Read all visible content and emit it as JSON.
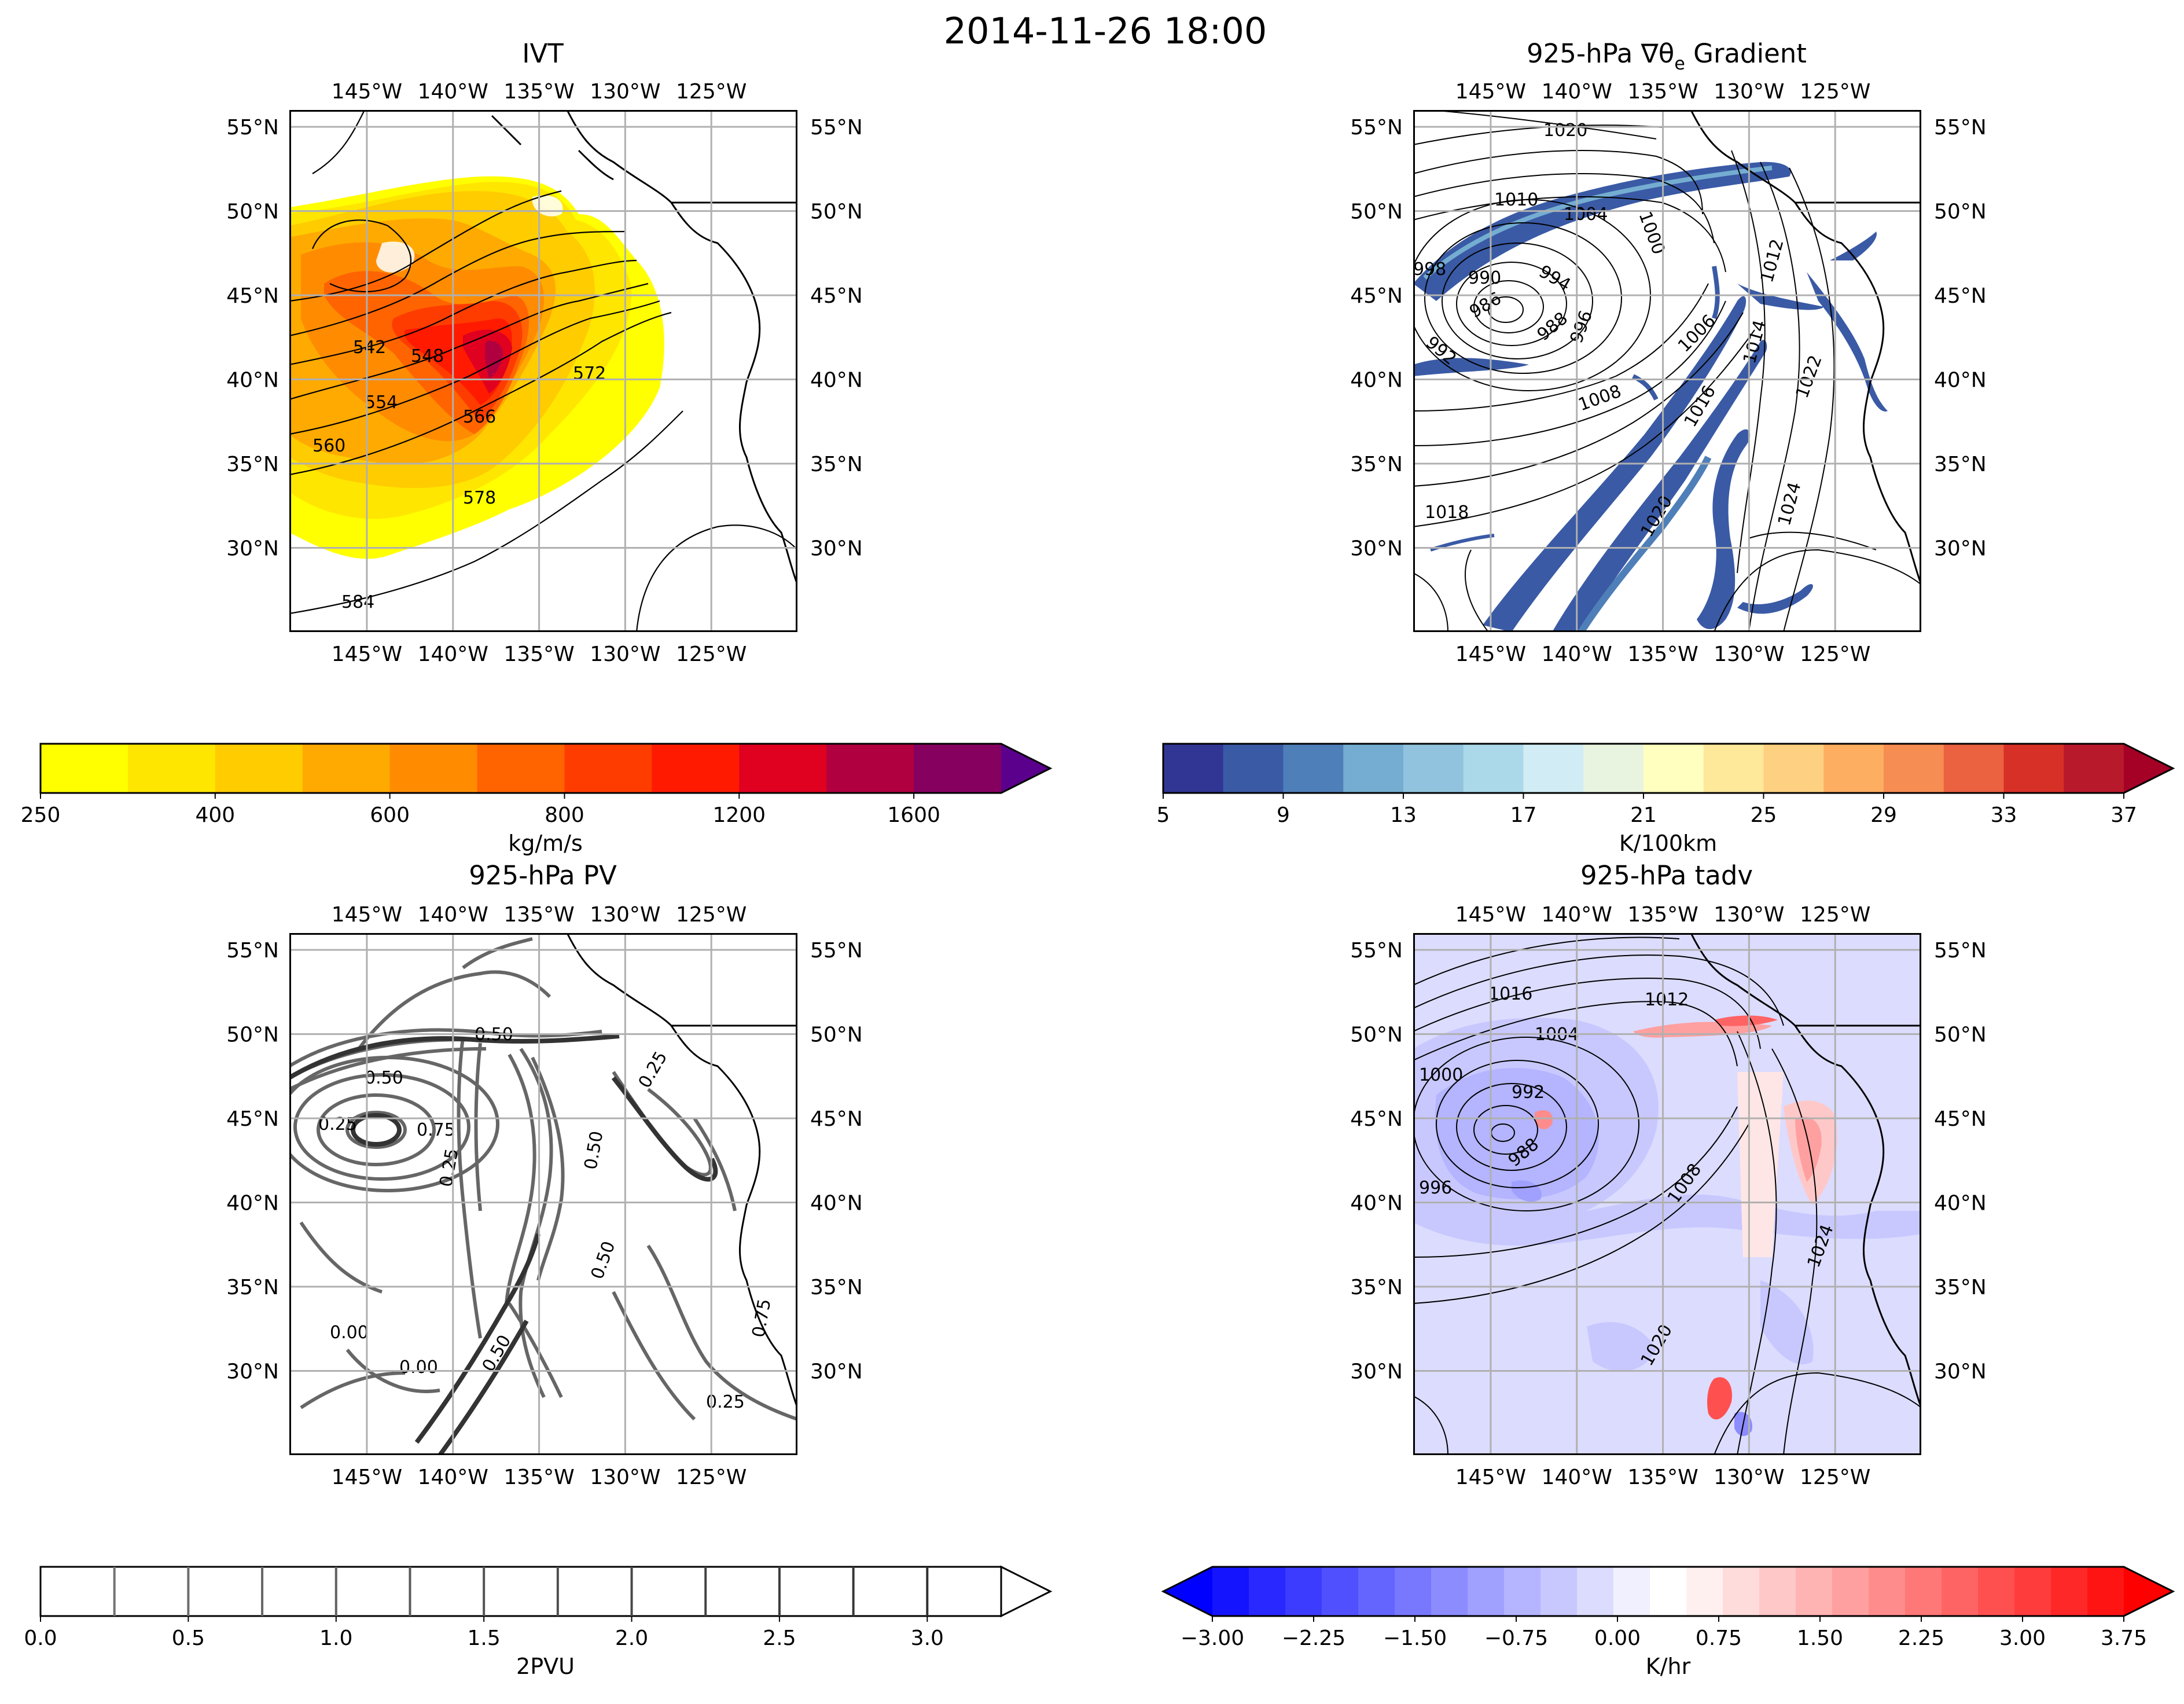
{
  "figure_title": "2014-11-26 18:00",
  "chart_data": [
    {
      "type": "map-contourf",
      "title": "IVT",
      "lon_ticks": [
        "145°W",
        "140°W",
        "135°W",
        "130°W",
        "125°W"
      ],
      "lat_ticks": [
        "55°N",
        "50°N",
        "45°N",
        "40°N",
        "35°N",
        "30°N"
      ],
      "contour_labels": [
        "542",
        "548",
        "554",
        "560",
        "566",
        "572",
        "578",
        "584"
      ],
      "colorbar": {
        "label": "kg/m/s",
        "ticks": [
          "250",
          "400",
          "600",
          "800",
          "1200",
          "1600"
        ],
        "colors": [
          "#ffff00",
          "#ffe600",
          "#ffcc00",
          "#ffaa00",
          "#ff8c00",
          "#ff6400",
          "#ff3c00",
          "#ff1a00",
          "#e00020",
          "#b00040",
          "#860060",
          "#5a008c"
        ],
        "extend": "max"
      }
    },
    {
      "type": "map-contourf",
      "title_prefix": "925-hPa ∇θ",
      "title_sub": "e",
      "title_suffix": " Gradient",
      "lon_ticks": [
        "145°W",
        "140°W",
        "135°W",
        "130°W",
        "125°W"
      ],
      "lat_ticks": [
        "55°N",
        "50°N",
        "45°N",
        "40°N",
        "35°N",
        "30°N"
      ],
      "contour_labels": [
        "1020",
        "1010",
        "1004",
        "1000",
        "990",
        "986",
        "988",
        "994",
        "992",
        "996",
        "998",
        "1006",
        "1008",
        "1012",
        "1014",
        "1016",
        "1018",
        "1020",
        "1022",
        "1024"
      ],
      "colorbar": {
        "label": "K/100km",
        "ticks": [
          "5",
          "9",
          "13",
          "17",
          "21",
          "25",
          "29",
          "33",
          "37"
        ],
        "colors": [
          "#313695",
          "#3a5aa5",
          "#4f7fb8",
          "#74add1",
          "#91c3de",
          "#abd9e9",
          "#d1ecf4",
          "#e9f4e0",
          "#ffffbf",
          "#fee89a",
          "#fdd181",
          "#fdae61",
          "#f68d52",
          "#ea6240",
          "#d73027",
          "#b8192b",
          "#a50026"
        ],
        "extend": "max"
      }
    },
    {
      "type": "map-contour",
      "title": "925-hPa PV",
      "lon_ticks": [
        "145°W",
        "140°W",
        "135°W",
        "130°W",
        "125°W"
      ],
      "lat_ticks": [
        "55°N",
        "50°N",
        "45°N",
        "40°N",
        "35°N",
        "30°N"
      ],
      "contour_labels": [
        "0.50",
        "0.50",
        "0.25",
        "0.25",
        "0.00",
        "0.00",
        "0.50",
        "0.75",
        "0.25",
        "0.50",
        "0.25",
        "0.75",
        "0.50"
      ],
      "colorbar": {
        "label": "2PVU",
        "ticks": [
          "0.0",
          "0.5",
          "1.0",
          "1.5",
          "2.0",
          "2.5",
          "3.0"
        ],
        "levels": 13,
        "extend": "max"
      }
    },
    {
      "type": "map-contourf",
      "title": "925-hPa tadv",
      "lon_ticks": [
        "145°W",
        "140°W",
        "135°W",
        "130°W",
        "125°W"
      ],
      "lat_ticks": [
        "55°N",
        "50°N",
        "45°N",
        "40°N",
        "35°N",
        "30°N"
      ],
      "contour_labels": [
        "1016",
        "1012",
        "1004",
        "1000",
        "992",
        "988",
        "996",
        "1008",
        "1024",
        "1020"
      ],
      "colorbar": {
        "label": "K/hr",
        "ticks": [
          "−3.00",
          "−2.25",
          "−1.50",
          "−0.75",
          "0.00",
          "0.75",
          "1.50",
          "2.25",
          "3.00",
          "3.75"
        ],
        "colors": [
          "#0000ff",
          "#1414ff",
          "#2828ff",
          "#3c3cff",
          "#5050ff",
          "#6464ff",
          "#7878ff",
          "#8c8cff",
          "#a0a0ff",
          "#b4b4ff",
          "#c8c8ff",
          "#dcdcff",
          "#f0f0ff",
          "#ffffff",
          "#fff0f0",
          "#ffdcdc",
          "#ffc8c8",
          "#ffb4b4",
          "#ffa0a0",
          "#ff8c8c",
          "#ff7878",
          "#ff6464",
          "#ff5050",
          "#ff3c3c",
          "#ff2828",
          "#ff1414",
          "#ff0000"
        ],
        "extend": "both"
      }
    }
  ]
}
